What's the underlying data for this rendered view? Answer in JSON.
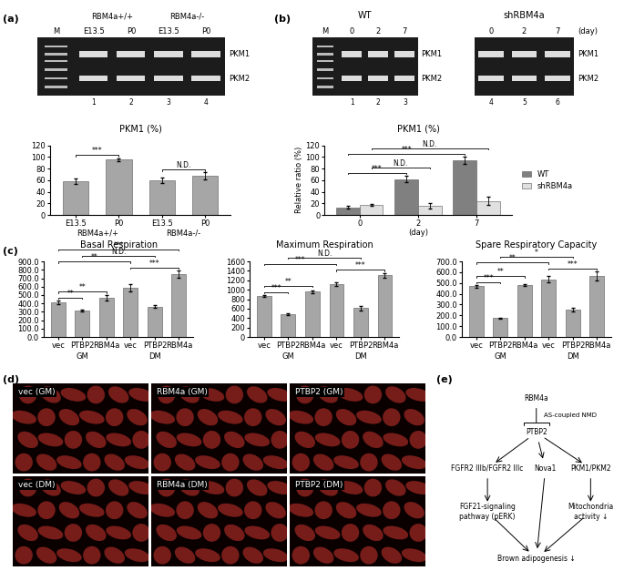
{
  "panel_labels": [
    "(a)",
    "(b)",
    "(c)",
    "(d)",
    "(e)"
  ],
  "gels": [
    {
      "marker": "M",
      "lanes": [
        "E13.5",
        "P0",
        "E13.5",
        "P0"
      ],
      "groups": [
        {
          "label": "RBM4a+/+",
          "from": 0,
          "to": 1
        },
        {
          "label": "RBM4a-/-",
          "from": 2,
          "to": 3
        }
      ],
      "lane_numbers": [
        1,
        2,
        3,
        4
      ],
      "bands": [
        "PKM1",
        "PKM2"
      ]
    },
    {
      "title": "WT",
      "marker": "M",
      "lanes": [
        "0",
        "2",
        "7"
      ],
      "lane_numbers": [
        1,
        2,
        3
      ],
      "bands": [
        "PKM1",
        "PKM2"
      ]
    },
    {
      "title": "shRBM4a",
      "lanes": [
        "0",
        "2",
        "7"
      ],
      "unit": "(day)",
      "lane_numbers": [
        4,
        5,
        6
      ],
      "bands": [
        "PKM1",
        "PKM2"
      ]
    }
  ],
  "chart_data": [
    {
      "type": "bar",
      "title": "PKM1 (%)",
      "categories": [
        "E13.5",
        "P0",
        "E13.5",
        "P0"
      ],
      "groups": [
        {
          "label": "RBM4a+/+",
          "from": 0,
          "to": 1
        },
        {
          "label": "RBM4a-/-",
          "from": 2,
          "to": 3
        }
      ],
      "values": [
        58,
        95,
        60,
        67
      ],
      "errors": [
        5,
        3,
        5,
        6
      ],
      "color": "#a6a6a6",
      "ylim": [
        0,
        120
      ],
      "yticks": [
        0,
        20,
        40,
        60,
        80,
        100,
        120
      ],
      "significance": [
        {
          "from": 0,
          "to": 1,
          "label": "***"
        },
        {
          "from": 2,
          "to": 3,
          "label": "N.D."
        }
      ]
    },
    {
      "type": "bar",
      "title": "PKM1 (%)",
      "xlabel": "(day)",
      "ylabel": "Relative ratio (%)",
      "categories": [
        "0",
        "2",
        "7"
      ],
      "series": [
        {
          "name": "WT",
          "color": "#808080",
          "values": [
            13,
            62,
            94
          ],
          "errors": [
            2,
            5,
            6
          ]
        },
        {
          "name": "shRBM4a",
          "color": "#e0e0e0",
          "values": [
            17,
            16,
            24
          ],
          "errors": [
            2,
            5,
            7
          ]
        }
      ],
      "legend": "right",
      "ylim": [
        0,
        120
      ],
      "yticks": [
        0,
        20,
        40,
        60,
        80,
        100,
        120
      ],
      "significance": [
        {
          "series": "WT",
          "from": 0,
          "to": 1,
          "label": "***"
        },
        {
          "series": "WT",
          "from": 0,
          "to": 2,
          "label": "***"
        },
        {
          "series": "shRBM4a",
          "from": 0,
          "to": 1,
          "label": "N.D."
        },
        {
          "series": "shRBM4a",
          "from": 0,
          "to": 2,
          "label": "N.D."
        }
      ]
    },
    {
      "type": "bar",
      "title": "Basal Respiration",
      "categories": [
        "vec",
        "PTBP2",
        "RBM4a",
        "vec",
        "PTBP2",
        "RBM4a"
      ],
      "groups": [
        {
          "label": "GM",
          "from": 0,
          "to": 2
        },
        {
          "label": "DM",
          "from": 3,
          "to": 5
        }
      ],
      "values": [
        410,
        315,
        470,
        585,
        360,
        750
      ],
      "errors": [
        20,
        15,
        35,
        40,
        15,
        40
      ],
      "color": "#a6a6a6",
      "ylim": [
        0,
        900
      ],
      "yticks": [
        {
          "value": 0,
          "label": "0.0"
        },
        {
          "value": 100,
          "label": "100.0"
        },
        {
          "value": 200,
          "label": "200.0"
        },
        {
          "value": 300,
          "label": "300.0"
        },
        {
          "value": 400,
          "label": "400.0"
        },
        {
          "value": 500,
          "label": "500.0"
        },
        {
          "value": 600,
          "label": "600.0"
        },
        {
          "value": 700,
          "label": "700.0"
        },
        {
          "value": 800,
          "label": "800.0"
        },
        {
          "value": 900,
          "label": "900.0"
        }
      ],
      "significance": [
        {
          "from": 0,
          "to": 1,
          "label": "**"
        },
        {
          "from": 0,
          "to": 2,
          "label": "**"
        },
        {
          "from": 0,
          "to": 3,
          "label": "**"
        },
        {
          "from": 0,
          "to": 5,
          "label": "***"
        },
        {
          "from": 1,
          "to": 4,
          "label": "N.D."
        },
        {
          "from": 3,
          "to": 5,
          "label": "***"
        }
      ]
    },
    {
      "type": "bar",
      "title": "Maximum Respiration",
      "categories": [
        "vec",
        "PTBP2",
        "RBM4a",
        "vec",
        "PTBP2",
        "RBM4a"
      ],
      "groups": [
        {
          "label": "GM",
          "from": 0,
          "to": 2
        },
        {
          "label": "DM",
          "from": 3,
          "to": 5
        }
      ],
      "values": [
        870,
        480,
        960,
        1120,
        610,
        1310
      ],
      "errors": [
        20,
        20,
        30,
        40,
        50,
        50
      ],
      "color": "#a6a6a6",
      "ylim": [
        0,
        1600
      ],
      "yticks": [
        0,
        200,
        400,
        600,
        800,
        1000,
        1200,
        1400,
        1600
      ],
      "significance": [
        {
          "from": 0,
          "to": 1,
          "label": "***"
        },
        {
          "from": 0,
          "to": 2,
          "label": "**"
        },
        {
          "from": 0,
          "to": 3,
          "label": "***"
        },
        {
          "from": 1,
          "to": 4,
          "label": "N.D."
        },
        {
          "from": 3,
          "to": 5,
          "label": "***"
        }
      ]
    },
    {
      "type": "bar",
      "title": "Spare Respiratory Capacity",
      "categories": [
        "vec",
        "PTBP2",
        "RBM4a",
        "vec",
        "PTBP2",
        "RBM4a"
      ],
      "groups": [
        {
          "label": "GM",
          "from": 0,
          "to": 2
        },
        {
          "label": "DM",
          "from": 3,
          "to": 5
        }
      ],
      "values": [
        470,
        175,
        480,
        535,
        255,
        565
      ],
      "errors": [
        10,
        5,
        10,
        30,
        15,
        40
      ],
      "color": "#a6a6a6",
      "ylim": [
        0,
        700
      ],
      "yticks": [
        {
          "value": 0,
          "label": "0.0"
        },
        {
          "value": 100,
          "label": "100.0"
        },
        {
          "value": 200,
          "label": "200.0"
        },
        {
          "value": 300,
          "label": "300.0"
        },
        {
          "value": 400,
          "label": "400.0"
        },
        {
          "value": 500,
          "label": "500.0"
        },
        {
          "value": 600,
          "label": "600.0"
        },
        {
          "value": 700,
          "label": "700.0"
        }
      ],
      "significance": [
        {
          "from": 0,
          "to": 1,
          "label": "***"
        },
        {
          "from": 0,
          "to": 2,
          "label": "**"
        },
        {
          "from": 0,
          "to": 3,
          "label": "**"
        },
        {
          "from": 1,
          "to": 4,
          "label": "*"
        },
        {
          "from": 3,
          "to": 5,
          "label": "***"
        }
      ]
    }
  ],
  "micrographs": [
    [
      "vec (GM)",
      "RBM4a (GM)",
      "PTBP2 (GM)"
    ],
    [
      "vec (DM)",
      "RBM4a (DM)",
      "PTBP2 (DM)"
    ]
  ],
  "diagram": {
    "nodes": [
      "RBM4a",
      "PTBP2",
      "FGFR2 IIIb/FGFR2 IIIc",
      "Nova1",
      "PKM1/PKM2",
      "FGF21-signaling\npathway (pERK)",
      "Mitochondria\nactivity ↓",
      "Brown adipogenesis ↓"
    ],
    "edges": [
      {
        "from": 0,
        "to": 1,
        "label": "AS-coupled NMD",
        "arrow": "inhibit"
      },
      {
        "from": 1,
        "to": 2,
        "arrow": "activate"
      },
      {
        "from": 1,
        "to": 3,
        "arrow": "activate"
      },
      {
        "from": 1,
        "to": 4,
        "arrow": "activate"
      },
      {
        "from": 2,
        "to": 5,
        "arrow": "activate"
      },
      {
        "from": 4,
        "to": 6,
        "arrow": "activate"
      },
      {
        "from": 3,
        "to": 7,
        "arrow": "activate"
      },
      {
        "from": 5,
        "to": 7,
        "arrow": "activate"
      },
      {
        "from": 6,
        "to": 7,
        "arrow": "activate"
      }
    ]
  }
}
